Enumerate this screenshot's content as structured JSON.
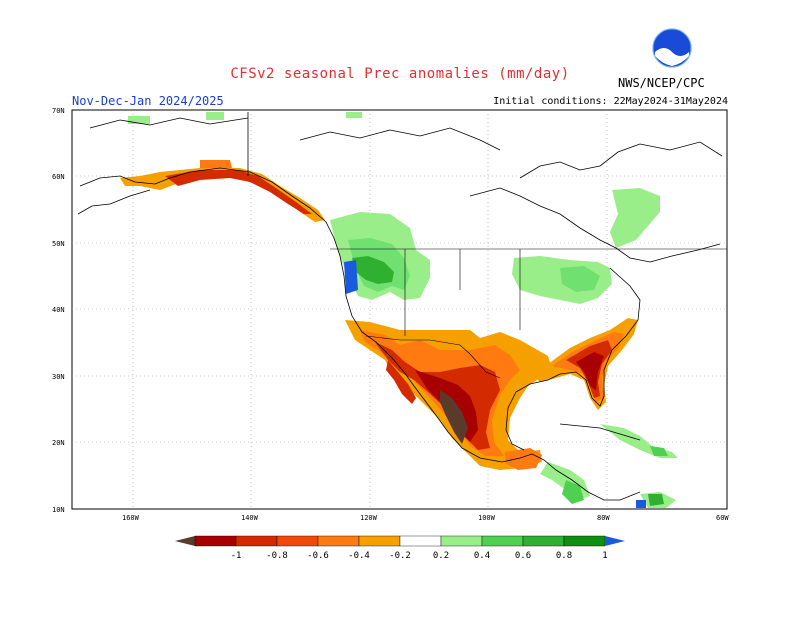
{
  "header": {
    "title": "CFSv2 seasonal Prec anomalies (mm/day)",
    "season": "Nov-Dec-Jan 2024/2025",
    "initial_conditions": "Initial conditions: 22May2024-31May2024",
    "agency": "NWS/NCEP/CPC",
    "logo_text": "NOAA"
  },
  "map": {
    "lat_labels": [
      "70N",
      "60N",
      "50N",
      "40N",
      "30N",
      "20N",
      "10N"
    ],
    "lon_labels": [
      "160W",
      "140W",
      "120W",
      "100W",
      "80W",
      "60W"
    ],
    "colors": {
      "dry_extreme": "#5a3a2a",
      "dry_strong": "#a80000",
      "dry_mod": "#d42a00",
      "dry_light": "#f04a08",
      "dry_weak": "#ff7a10",
      "dry_min": "#f6a000",
      "wet_min": "#9aee8a",
      "wet_weak": "#70e070",
      "wet_light": "#50d050",
      "wet_mod": "#30b030",
      "wet_strong": "#109010",
      "wet_extreme": "#1a5adf"
    }
  },
  "colorbar": {
    "labels": [
      "-1",
      "-0.8",
      "-0.6",
      "-0.4",
      "-0.2",
      "0.2",
      "0.4",
      "0.6",
      "0.8",
      "1"
    ],
    "colors": [
      "#a80000",
      "#d42a00",
      "#f04a08",
      "#ff7a10",
      "#f6a000",
      "#ffffff",
      "#9aee8a",
      "#50d050",
      "#30b030",
      "#109010"
    ],
    "under_color": "#5a3a2a",
    "over_color": "#1a5adf"
  }
}
